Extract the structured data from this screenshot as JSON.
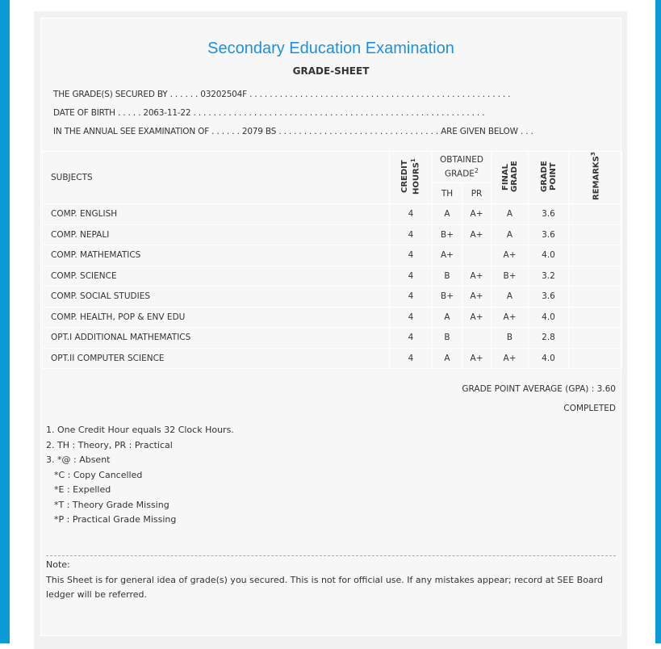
{
  "title": "Secondary Education Examination",
  "subtitle": "GRADE-SHEET",
  "info": {
    "line1": "THE GRADE(S) SECURED BY . . . . . . 03202504F . . . . . . . . . . . . . . . . . . . . . . . . . . . . . . . . . . . . . . . . . . . . . . . . . . . .",
    "line2": "DATE OF BIRTH . . . . . 2063-11-22 . . . . . . . . . . . . . . . . . . . . . . . . . . . . . . . . . . . . . . . . . . . . . . . . . . . . . . . . . .",
    "line3": "IN THE ANNUAL SEE EXAMINATION OF . . . . . . 2079 BS . . . . . . . . . . . . . . . . . . . . . . . . . . . . . . . . ARE GIVEN BELOW . . ."
  },
  "table": {
    "headers": {
      "subjects": "SUBJECTS",
      "credit": "CREDIT HOURS",
      "credit_sup": "1",
      "obtained": "OBTAINED GRADE",
      "obtained_sup": "2",
      "th": "TH",
      "pr": "PR",
      "final": "FINAL GRADE",
      "gp": "GRADE POINT",
      "remarks": "REMARKS",
      "remarks_sup": "3"
    },
    "rows": [
      {
        "subject": "COMP. ENGLISH",
        "credit": "4",
        "th": "A",
        "pr": "A+",
        "final": "A",
        "gp": "3.6",
        "remarks": ""
      },
      {
        "subject": "COMP. NEPALI",
        "credit": "4",
        "th": "B+",
        "pr": "A+",
        "final": "A",
        "gp": "3.6",
        "remarks": ""
      },
      {
        "subject": "COMP. MATHEMATICS",
        "credit": "4",
        "th": "A+",
        "pr": "",
        "final": "A+",
        "gp": "4.0",
        "remarks": ""
      },
      {
        "subject": "COMP. SCIENCE",
        "credit": "4",
        "th": "B",
        "pr": "A+",
        "final": "B+",
        "gp": "3.2",
        "remarks": ""
      },
      {
        "subject": "COMP. SOCIAL STUDIES",
        "credit": "4",
        "th": "B+",
        "pr": "A+",
        "final": "A",
        "gp": "3.6",
        "remarks": ""
      },
      {
        "subject": "COMP. HEALTH, POP & ENV EDU",
        "credit": "4",
        "th": "A",
        "pr": "A+",
        "final": "A+",
        "gp": "4.0",
        "remarks": ""
      },
      {
        "subject": "OPT.I ADDITIONAL MATHEMATICS",
        "credit": "4",
        "th": "B",
        "pr": "",
        "final": "B",
        "gp": "2.8",
        "remarks": ""
      },
      {
        "subject": "OPT.II COMPUTER SCIENCE",
        "credit": "4",
        "th": "A",
        "pr": "A+",
        "final": "A+",
        "gp": "4.0",
        "remarks": ""
      }
    ]
  },
  "gpa": "GRADE POINT AVERAGE (GPA) : 3.60",
  "status": "COMPLETED",
  "footnotes": [
    "1. One Credit Hour equals 32 Clock Hours.",
    "2. TH : Theory, PR : Practical",
    "3. *@ : Absent",
    "*C : Copy Cancelled",
    "*E : Expelled",
    "*T : Theory Grade Missing",
    "*P : Practical Grade Missing"
  ],
  "note": {
    "label": "Note:",
    "text": "This Sheet is for general idea of grade(s) you secured. This is not for official use. If any mistakes appear; record at SEE Board ledger will be referred."
  },
  "colors": {
    "accent": "#0b9bd6",
    "title": "#1d8fe0"
  }
}
